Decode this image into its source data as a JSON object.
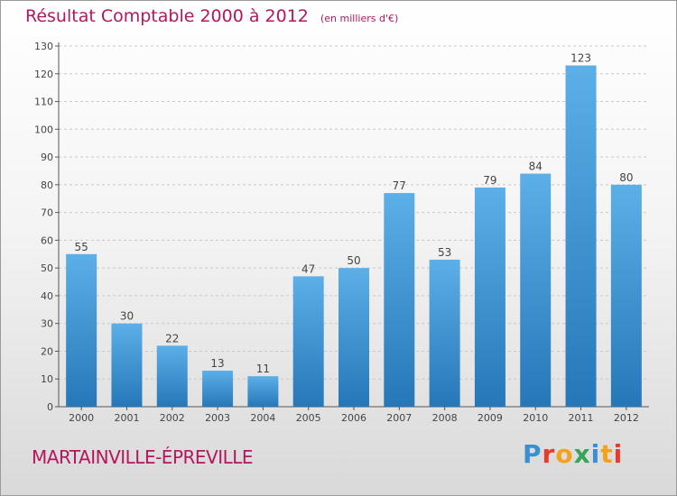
{
  "title": "Résultat Comptable 2000 à 2012",
  "subtitle": "(en milliers d'€)",
  "municipality": "MARTAINVILLE-ÉPREVILLE",
  "logo": {
    "letters": [
      "P",
      "r",
      "o",
      "x",
      "i",
      "t",
      "i"
    ]
  },
  "colors": {
    "accent": "#b5165e",
    "bar_top": "#5dafe8",
    "bar_bottom": "#2577b8"
  },
  "chart_data": {
    "type": "bar",
    "categories": [
      "2000",
      "2001",
      "2002",
      "2003",
      "2004",
      "2005",
      "2006",
      "2007",
      "2008",
      "2009",
      "2010",
      "2011",
      "2012"
    ],
    "values": [
      55,
      30,
      22,
      13,
      11,
      47,
      50,
      77,
      53,
      79,
      84,
      123,
      80
    ],
    "title": "Résultat Comptable 2000 à 2012",
    "xlabel": "",
    "ylabel": "",
    "ylim": [
      0,
      130
    ],
    "yticks": [
      0,
      10,
      20,
      30,
      40,
      50,
      60,
      70,
      80,
      90,
      100,
      110,
      120,
      130
    ],
    "grid": true,
    "data_labels": true
  }
}
